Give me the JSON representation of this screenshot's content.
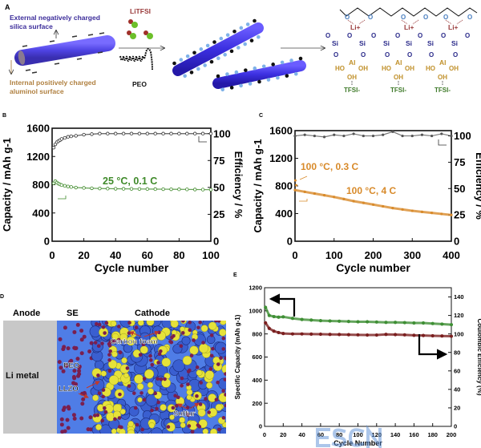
{
  "panel_labels": {
    "a": "A",
    "b": "B",
    "c": "C",
    "d": "D",
    "e": "E"
  },
  "panel_a": {
    "external_label_1": "External negatively charged",
    "external_label_2": "silica surface",
    "internal_label_1": "Internal positively charged",
    "internal_label_2": "aluminol surface",
    "salt_label": "LiTFSI",
    "polymer_label": "PEO",
    "chem": {
      "li": "Li+",
      "si": "Si",
      "o": "O",
      "al": "Al",
      "ho": "HO",
      "oh": "OH",
      "tfsi": "TFSI-"
    },
    "colors": {
      "tube": "#3b2fe0",
      "silica_text": "#3b2c9a",
      "aluminol_text": "#b08040",
      "tfsi_text": "#3f7a2a",
      "li_text": "#9a3b3b"
    }
  },
  "panel_d": {
    "header_anode": "Anode",
    "header_se": "SE",
    "header_cathode": "Cathode",
    "li_metal": "Li metal",
    "peo": "PEO",
    "llzo": "LLZO",
    "carbon_foam": "Carbon foam",
    "sulfur": "Sulfur",
    "colors": {
      "anode": "#c8c8c8",
      "se": "#4f7de6",
      "sulfur": "#e6e23a",
      "llzo": "#7a1f4f"
    }
  },
  "watermark": "ESCN 中国储能网",
  "chart_data": [
    {
      "panel": "B",
      "type": "scatter",
      "xlabel": "Cycle number",
      "ylabel": "Capacity / mAh g-1",
      "y2label": "Efficiency / %",
      "xlim": [
        0,
        100
      ],
      "ylim": [
        0,
        1600
      ],
      "y2lim": [
        0,
        105
      ],
      "xticks": [
        0,
        20,
        40,
        60,
        80,
        100
      ],
      "yticks": [
        0,
        400,
        800,
        1200,
        1600
      ],
      "y2ticks": [
        0,
        25,
        50,
        75,
        100
      ],
      "annotation": "25 °C, 0.1 C",
      "x": [
        1,
        2,
        3,
        4,
        5,
        6,
        8,
        10,
        12,
        15,
        20,
        25,
        30,
        35,
        40,
        45,
        50,
        55,
        60,
        65,
        70,
        75,
        80,
        85,
        90,
        95,
        100
      ],
      "series": [
        {
          "axis": "left",
          "color": "#3f8a2a",
          "values": [
            820,
            850,
            830,
            815,
            805,
            795,
            785,
            775,
            768,
            760,
            755,
            750,
            747,
            745,
            743,
            742,
            741,
            740,
            739,
            738,
            737,
            736,
            735,
            734,
            732,
            731,
            730
          ]
        },
        {
          "axis": "right",
          "color": "#333333",
          "values": [
            87,
            90,
            92,
            93,
            94,
            95,
            96,
            97,
            97.5,
            98,
            99,
            99.5,
            100,
            100,
            100,
            100,
            100,
            100,
            100,
            100,
            100,
            100,
            100,
            100,
            100,
            100,
            100
          ]
        }
      ]
    },
    {
      "panel": "C",
      "type": "scatter",
      "xlabel": "Cycle number",
      "ylabel": "Capacity / mAh g-1",
      "y2label": "Efficiency / %",
      "xlim": [
        0,
        400
      ],
      "ylim": [
        0,
        1600
      ],
      "y2lim": [
        0,
        105
      ],
      "xticks": [
        0,
        100,
        200,
        300,
        400
      ],
      "yticks": [
        0,
        400,
        800,
        1200,
        1600
      ],
      "y2ticks": [
        0,
        25,
        50,
        75,
        100
      ],
      "annotations": [
        "100 °C, 0.3 C",
        "100 °C, 4 C"
      ],
      "x": [
        0,
        25,
        50,
        75,
        100,
        125,
        150,
        175,
        200,
        225,
        250,
        275,
        300,
        325,
        350,
        375,
        400
      ],
      "series": [
        {
          "axis": "left",
          "color": "#d88a2a",
          "values": [
            740,
            715,
            690,
            665,
            640,
            610,
            580,
            555,
            530,
            505,
            480,
            460,
            440,
            425,
            410,
            395,
            380
          ]
        },
        {
          "axis": "right",
          "color": "#555555",
          "values": [
            100,
            101,
            100,
            99,
            101,
            100,
            102,
            100,
            100,
            101,
            104,
            100,
            100,
            101,
            100,
            102,
            100
          ]
        }
      ],
      "initial_points": {
        "x": [
          1,
          3
        ],
        "values": [
          880,
          810
        ]
      }
    },
    {
      "panel": "E",
      "type": "scatter",
      "xlabel": "Cycle Number",
      "ylabel": "Specific Capacity (mAh g-1)",
      "y2label": "Coulombic Efficiency (%)",
      "xlim": [
        0,
        200
      ],
      "ylim": [
        0,
        1200
      ],
      "y2lim": [
        0,
        150
      ],
      "xticks": [
        0,
        20,
        40,
        60,
        80,
        100,
        120,
        140,
        160,
        180,
        200
      ],
      "yticks": [
        0,
        200,
        400,
        600,
        800,
        1000,
        1200
      ],
      "y2ticks": [
        0,
        20,
        40,
        60,
        80,
        100,
        120,
        140
      ],
      "x": [
        1,
        5,
        10,
        15,
        20,
        30,
        40,
        50,
        60,
        70,
        80,
        90,
        100,
        110,
        120,
        130,
        140,
        150,
        160,
        170,
        180,
        190,
        200
      ],
      "series": [
        {
          "axis": "left",
          "color": "#3f8f35",
          "values": [
            1030,
            960,
            950,
            945,
            948,
            935,
            925,
            920,
            915,
            912,
            910,
            908,
            905,
            905,
            903,
            900,
            900,
            898,
            895,
            895,
            890,
            885,
            880
          ]
        },
        {
          "axis": "right",
          "color": "#7a1f1f",
          "values": [
            112,
            106,
            103,
            101.5,
            100.5,
            100,
            100,
            99.8,
            99.7,
            99.5,
            99.4,
            99.2,
            99,
            98.8,
            98.8,
            99.5,
            99.3,
            99,
            98.5,
            98.3,
            98,
            97.8,
            97.5
          ]
        }
      ]
    }
  ]
}
